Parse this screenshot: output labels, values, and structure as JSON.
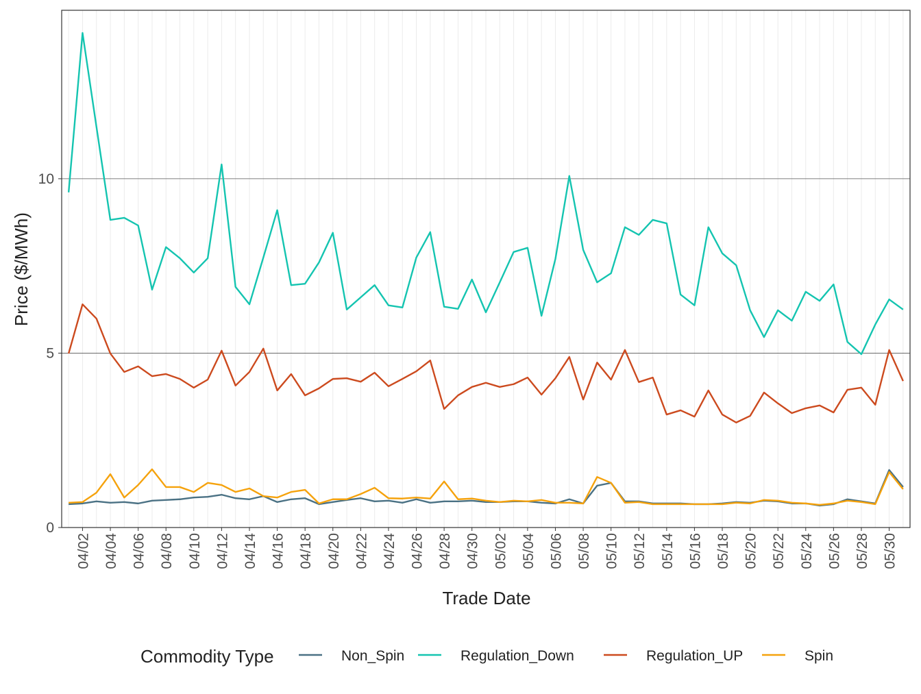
{
  "chart_data": {
    "type": "line",
    "x_label": "Trade Date",
    "y_label": "Price ($/MWh)",
    "legend_title": "Commodity Type",
    "legend_position": "bottom",
    "grid": true,
    "categories": [
      null,
      "04/02",
      null,
      "04/04",
      null,
      "04/06",
      null,
      "04/08",
      null,
      "04/10",
      null,
      "04/12",
      null,
      "04/14",
      null,
      "04/16",
      null,
      "04/18",
      null,
      "04/20",
      null,
      "04/22",
      null,
      "04/24",
      null,
      "04/26",
      null,
      "04/28",
      null,
      "04/30",
      null,
      "05/02",
      null,
      "05/04",
      null,
      "05/06",
      null,
      "05/08",
      null,
      "05/10",
      null,
      "05/12",
      null,
      "05/14",
      null,
      "05/16",
      null,
      "05/18",
      null,
      "05/20",
      null,
      "05/22",
      null,
      "05/24",
      null,
      "05/26",
      null,
      "05/28",
      null,
      "05/30",
      null
    ],
    "ylim": [
      0,
      14.83
    ],
    "yticks": [
      0,
      5,
      10
    ],
    "series": [
      {
        "name": "Non_Spin",
        "color": "#4a7184",
        "values": [
          0.67,
          0.69,
          0.75,
          0.71,
          0.73,
          0.69,
          0.77,
          0.79,
          0.81,
          0.86,
          0.88,
          0.94,
          0.84,
          0.81,
          0.9,
          0.73,
          0.81,
          0.84,
          0.67,
          0.73,
          0.79,
          0.84,
          0.75,
          0.77,
          0.71,
          0.81,
          0.71,
          0.75,
          0.75,
          0.77,
          0.73,
          0.73,
          0.75,
          0.75,
          0.71,
          0.69,
          0.81,
          0.69,
          1.2,
          1.28,
          0.75,
          0.75,
          0.69,
          0.69,
          0.69,
          0.67,
          0.67,
          0.69,
          0.73,
          0.71,
          0.77,
          0.75,
          0.69,
          0.69,
          0.63,
          0.67,
          0.81,
          0.75,
          0.69,
          1.65,
          1.16
        ]
      },
      {
        "name": "Regulation_Down",
        "color": "#14c4b0",
        "values": [
          9.61,
          14.18,
          11.49,
          8.82,
          8.88,
          8.66,
          6.82,
          8.04,
          7.72,
          7.31,
          7.72,
          10.41,
          6.9,
          6.4,
          7.74,
          9.1,
          6.95,
          6.99,
          7.6,
          8.45,
          6.25,
          6.6,
          6.95,
          6.37,
          6.31,
          7.74,
          8.47,
          6.33,
          6.27,
          7.11,
          6.17,
          7.03,
          7.9,
          8.02,
          6.07,
          7.7,
          10.08,
          7.96,
          7.03,
          7.29,
          8.61,
          8.39,
          8.82,
          8.72,
          6.68,
          6.37,
          8.61,
          7.86,
          7.52,
          6.23,
          5.46,
          6.23,
          5.93,
          6.76,
          6.5,
          6.97,
          5.32,
          4.97,
          5.82,
          6.54,
          6.25
        ]
      },
      {
        "name": "Regulation_UP",
        "color": "#cc4a1e",
        "values": [
          4.99,
          6.4,
          5.99,
          4.99,
          4.46,
          4.62,
          4.34,
          4.4,
          4.26,
          4.01,
          4.24,
          5.07,
          4.07,
          4.46,
          5.13,
          3.93,
          4.4,
          3.79,
          3.99,
          4.26,
          4.28,
          4.18,
          4.44,
          4.05,
          4.26,
          4.48,
          4.79,
          3.4,
          3.79,
          4.03,
          4.15,
          4.03,
          4.11,
          4.3,
          3.81,
          4.28,
          4.89,
          3.67,
          4.73,
          4.24,
          5.09,
          4.17,
          4.3,
          3.24,
          3.36,
          3.18,
          3.93,
          3.24,
          3.01,
          3.2,
          3.87,
          3.56,
          3.28,
          3.42,
          3.5,
          3.3,
          3.95,
          4.01,
          3.52,
          5.09,
          4.2
        ]
      },
      {
        "name": "Spin",
        "color": "#f5a20c",
        "values": [
          0.71,
          0.73,
          1.0,
          1.53,
          0.86,
          1.22,
          1.67,
          1.16,
          1.16,
          1.02,
          1.28,
          1.22,
          1.02,
          1.12,
          0.9,
          0.86,
          1.02,
          1.08,
          0.69,
          0.81,
          0.81,
          0.96,
          1.14,
          0.84,
          0.83,
          0.86,
          0.83,
          1.32,
          0.81,
          0.83,
          0.77,
          0.73,
          0.77,
          0.75,
          0.79,
          0.71,
          0.71,
          0.69,
          1.45,
          1.28,
          0.71,
          0.73,
          0.67,
          0.67,
          0.67,
          0.67,
          0.67,
          0.67,
          0.71,
          0.69,
          0.79,
          0.77,
          0.71,
          0.69,
          0.65,
          0.69,
          0.77,
          0.73,
          0.67,
          1.59,
          1.1
        ]
      }
    ]
  }
}
